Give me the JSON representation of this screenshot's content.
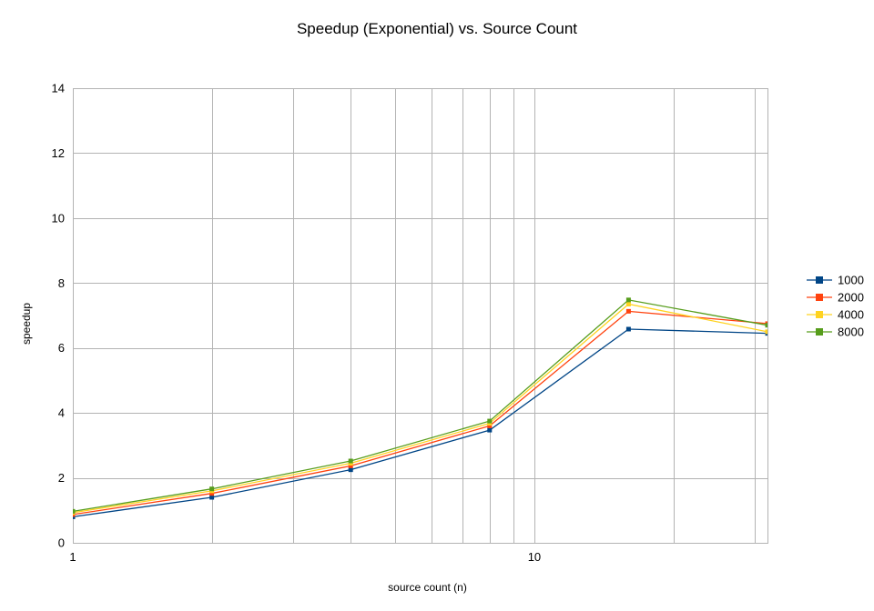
{
  "chart_data": {
    "type": "line",
    "title": "Speedup (Exponential) vs. Source Count",
    "xlabel": "source count (n)",
    "ylabel": "speedup",
    "xscale": "log",
    "xlim": [
      1,
      32
    ],
    "ylim": [
      0,
      14
    ],
    "x_ticks": [
      1,
      10
    ],
    "y_ticks": [
      0,
      2,
      4,
      6,
      8,
      10,
      12,
      14
    ],
    "grid": true,
    "legend_position": "right",
    "x": [
      1,
      2,
      4,
      8,
      16,
      32
    ],
    "series": [
      {
        "name": "1000",
        "color": "#004586",
        "values": [
          0.8,
          1.4,
          2.25,
          3.47,
          6.58,
          6.45
        ]
      },
      {
        "name": "2000",
        "color": "#ff420e",
        "values": [
          0.87,
          1.52,
          2.37,
          3.6,
          7.13,
          6.75
        ]
      },
      {
        "name": "4000",
        "color": "#ffd320",
        "values": [
          0.93,
          1.6,
          2.45,
          3.68,
          7.35,
          6.5
        ]
      },
      {
        "name": "8000",
        "color": "#579d1c",
        "values": [
          0.97,
          1.66,
          2.52,
          3.75,
          7.48,
          6.7
        ]
      }
    ]
  }
}
